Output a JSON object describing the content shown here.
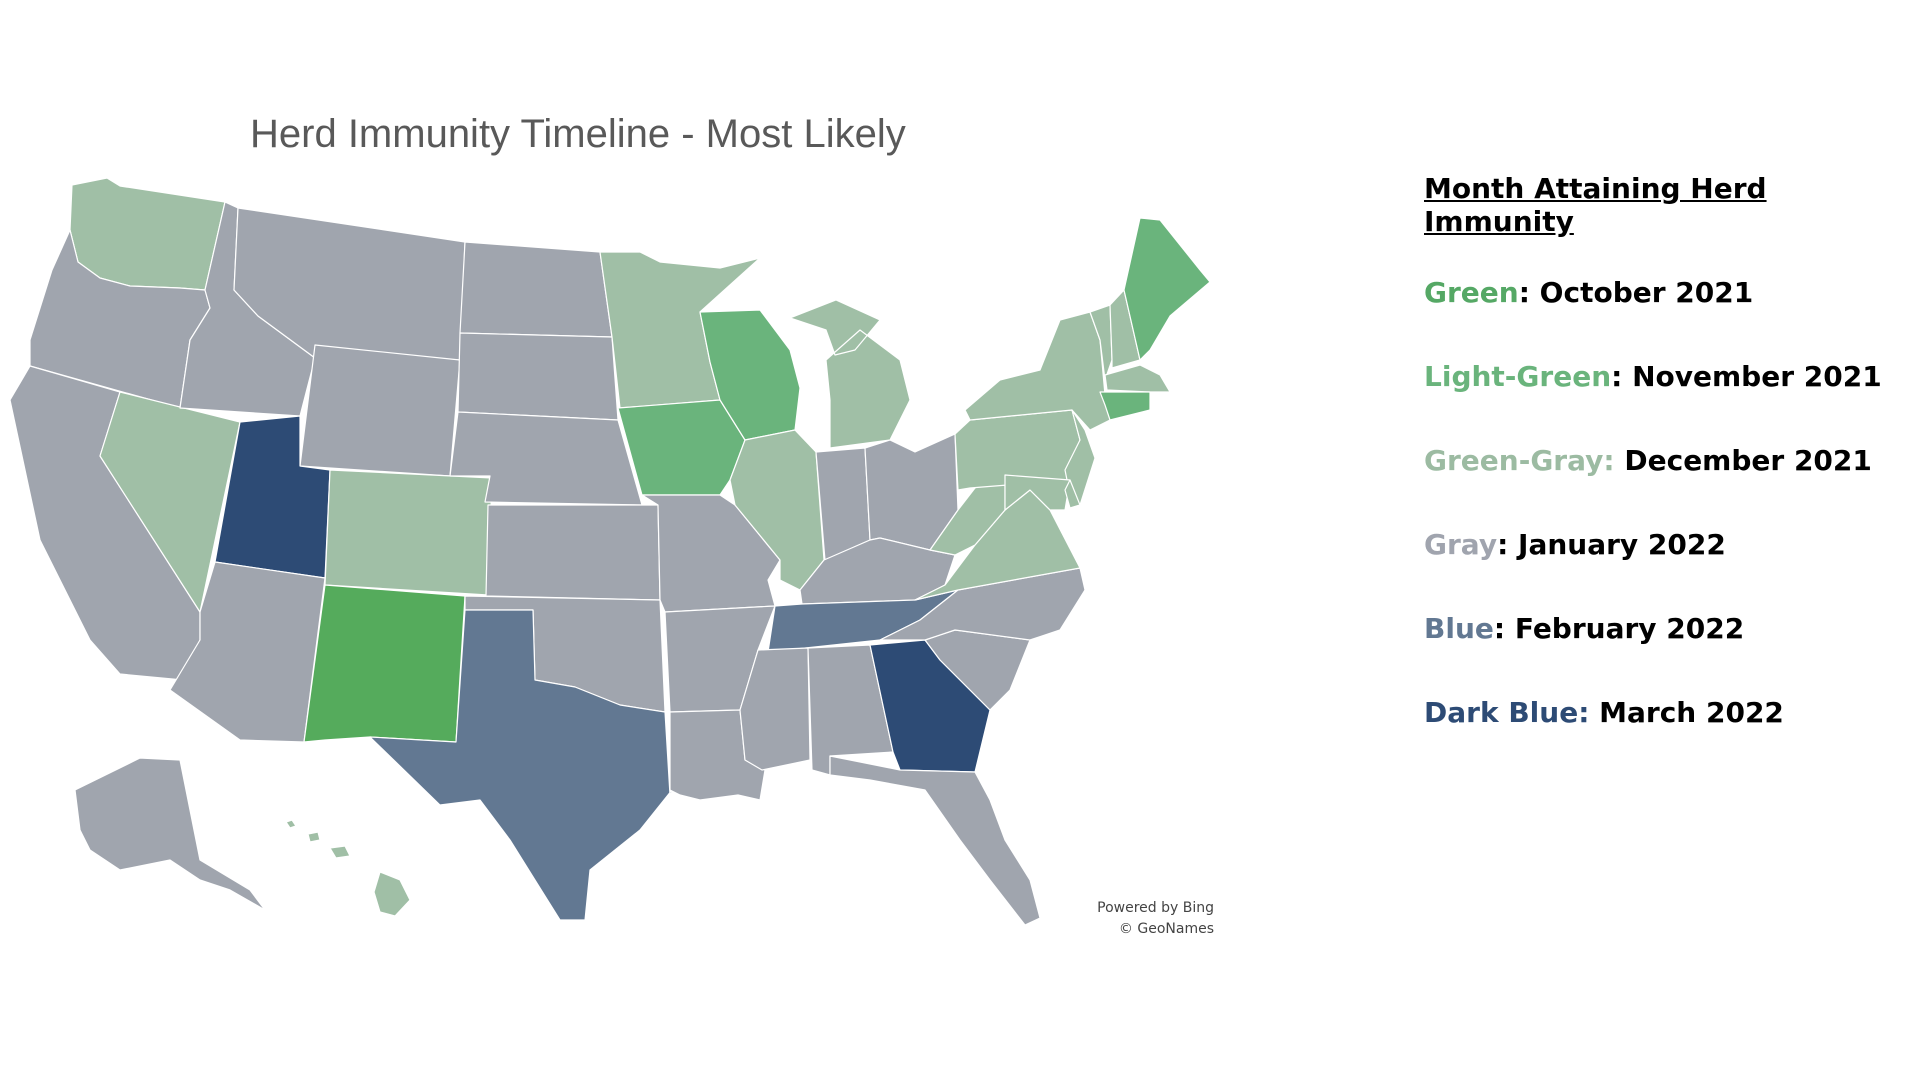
{
  "title": "Herd Immunity Timeline - Most Likely",
  "attribution": {
    "line1": "Powered by Bing",
    "line2": "© GeoNames"
  },
  "legend": {
    "heading": "Month Attaining Herd Immunity",
    "items": [
      {
        "label": "Green",
        "value": "October 2021",
        "label_color": "#55a865",
        "colon_in_label_color": false
      },
      {
        "label": "Light-Green",
        "value": "November 2021",
        "label_color": "#6ab47c",
        "colon_in_label_color": false
      },
      {
        "label": "Green-Gray",
        "value": "December 2021",
        "label_color": "#9cbba2",
        "colon_in_label_color": true
      },
      {
        "label": "Gray",
        "value": "January 2022",
        "label_color": "#a0a4ae",
        "colon_in_label_color": false
      },
      {
        "label": "Blue",
        "value": "February 2022",
        "label_color": "#627892",
        "colon_in_label_color": false
      },
      {
        "label": "Dark Blue",
        "value": "March 2022",
        "label_color": "#2d4b75",
        "colon_in_label_color": true
      }
    ]
  },
  "colors": {
    "green": "#55ab5c",
    "light_green": "#6ab47c",
    "green_gray": "#a0bfa6",
    "gray": "#a0a5ae",
    "blue": "#627892",
    "dark_blue": "#2d4b75"
  },
  "map_regions": [
    {
      "state": "Washington",
      "category": "green_gray"
    },
    {
      "state": "Oregon",
      "category": "gray"
    },
    {
      "state": "California",
      "category": "gray"
    },
    {
      "state": "Nevada",
      "category": "green_gray"
    },
    {
      "state": "Idaho",
      "category": "gray"
    },
    {
      "state": "Montana",
      "category": "gray"
    },
    {
      "state": "Wyoming",
      "category": "gray"
    },
    {
      "state": "Utah",
      "category": "dark_blue"
    },
    {
      "state": "Arizona",
      "category": "gray"
    },
    {
      "state": "Colorado",
      "category": "green_gray"
    },
    {
      "state": "New Mexico",
      "category": "green"
    },
    {
      "state": "North Dakota",
      "category": "gray"
    },
    {
      "state": "South Dakota",
      "category": "gray"
    },
    {
      "state": "Nebraska",
      "category": "gray"
    },
    {
      "state": "Kansas",
      "category": "gray"
    },
    {
      "state": "Oklahoma",
      "category": "gray"
    },
    {
      "state": "Texas",
      "category": "blue"
    },
    {
      "state": "Minnesota",
      "category": "green_gray"
    },
    {
      "state": "Iowa",
      "category": "light_green"
    },
    {
      "state": "Missouri",
      "category": "gray"
    },
    {
      "state": "Arkansas",
      "category": "gray"
    },
    {
      "state": "Louisiana",
      "category": "gray"
    },
    {
      "state": "Wisconsin",
      "category": "light_green"
    },
    {
      "state": "Illinois",
      "category": "green_gray"
    },
    {
      "state": "Michigan",
      "category": "green_gray"
    },
    {
      "state": "Indiana",
      "category": "gray"
    },
    {
      "state": "Ohio",
      "category": "gray"
    },
    {
      "state": "Kentucky",
      "category": "gray"
    },
    {
      "state": "Tennessee",
      "category": "blue"
    },
    {
      "state": "Mississippi",
      "category": "gray"
    },
    {
      "state": "Alabama",
      "category": "gray"
    },
    {
      "state": "Georgia",
      "category": "dark_blue"
    },
    {
      "state": "Florida",
      "category": "gray"
    },
    {
      "state": "South Carolina",
      "category": "gray"
    },
    {
      "state": "North Carolina",
      "category": "gray"
    },
    {
      "state": "Virginia",
      "category": "green_gray"
    },
    {
      "state": "West Virginia",
      "category": "green_gray"
    },
    {
      "state": "Pennsylvania",
      "category": "green_gray"
    },
    {
      "state": "New York",
      "category": "green_gray"
    },
    {
      "state": "Vermont",
      "category": "green_gray"
    },
    {
      "state": "New Hampshire",
      "category": "green_gray"
    },
    {
      "state": "Maine",
      "category": "light_green"
    },
    {
      "state": "Massachusetts",
      "category": "green_gray"
    },
    {
      "state": "Connecticut",
      "category": "light_green"
    },
    {
      "state": "New Jersey",
      "category": "green_gray"
    },
    {
      "state": "Maryland",
      "category": "green_gray"
    },
    {
      "state": "Delaware",
      "category": "green_gray"
    },
    {
      "state": "Alaska",
      "category": "gray"
    },
    {
      "state": "Hawaii",
      "category": "green_gray"
    }
  ]
}
